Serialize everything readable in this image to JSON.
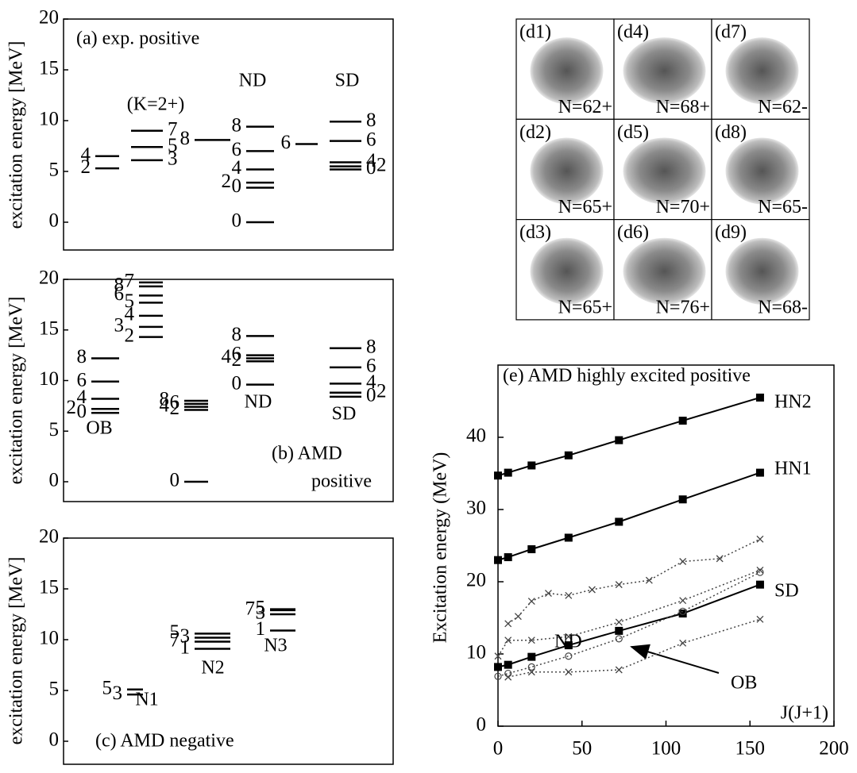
{
  "chart_data": [
    {
      "type": "level",
      "title_lines": [
        "(a) exp. positive"
      ],
      "ylabel": "excitation energy [MeV]",
      "ylim": [
        0,
        20
      ],
      "yticks": [
        0,
        5,
        10,
        15,
        20
      ],
      "bands": [
        {
          "levels": [
            5.3,
            6.5
          ],
          "spins": [
            "2",
            "4"
          ]
        },
        {
          "name": "(K=2+)",
          "levels": [
            6.1,
            7.4,
            9.0
          ],
          "spins": [
            "3",
            "5",
            "7"
          ]
        },
        {
          "levels": [
            8.1
          ],
          "spins": [
            "8"
          ]
        },
        {
          "name": "ND",
          "levels": [
            0,
            3.4,
            3.9,
            5.2,
            7.0,
            9.4
          ],
          "spins": [
            "0",
            "0",
            "2",
            "4",
            "6",
            "8"
          ]
        },
        {
          "levels": [
            7.7
          ],
          "spins": [
            "6"
          ]
        },
        {
          "name": "SD",
          "levels": [
            5.2,
            5.5,
            5.9,
            8.0,
            9.9
          ],
          "spins": [
            "0",
            "2",
            "4",
            "6",
            "8"
          ]
        }
      ]
    },
    {
      "type": "level",
      "title_lines": [
        "(b) AMD",
        "positive"
      ],
      "ylabel": "excitation energy [MeV]",
      "ylim": [
        0,
        20
      ],
      "yticks": [
        0,
        5,
        10,
        15,
        20
      ],
      "bands": [
        {
          "name": "OB",
          "levels": [
            6.8,
            7.2,
            8.2,
            9.9,
            12.2
          ],
          "spins": [
            "0",
            "2",
            "4",
            "6",
            "8"
          ]
        },
        {
          "levels": [
            14.3,
            15.3,
            16.4,
            17.7,
            18.4,
            19.7,
            19.3
          ],
          "spins": [
            "2",
            "3",
            "4",
            "5",
            "6",
            "7",
            "8"
          ]
        },
        {
          "name": "ND",
          "levels": [
            0,
            7.1,
            7.4,
            7.7,
            8.0
          ],
          "spins": [
            "0",
            "2",
            "4",
            "6",
            "8"
          ]
        },
        {
          "levels": [
            9.6,
            11.9,
            12.2,
            12.5,
            14.4
          ],
          "spins": [
            "0",
            "2",
            "4",
            "6",
            "8"
          ]
        },
        {
          "name": "SD",
          "levels": [
            8.4,
            8.8,
            9.7,
            11.3,
            13.2
          ],
          "spins": [
            "0",
            "2",
            "4",
            "6",
            "8"
          ]
        }
      ]
    },
    {
      "type": "level",
      "title_lines": [
        "(c) AMD negative"
      ],
      "ylabel": "excitation energy [MeV]",
      "ylim": [
        0,
        20
      ],
      "yticks": [
        0,
        5,
        10,
        15,
        20
      ],
      "bands": [
        {
          "name": "N1",
          "levels": [
            4.6,
            5.1
          ],
          "spins": [
            "3",
            "5"
          ]
        },
        {
          "name": "N2",
          "levels": [
            9.1,
            9.8,
            10.2,
            10.6
          ],
          "spins": [
            "1",
            "7",
            "3",
            "5"
          ]
        },
        {
          "name": "N3",
          "levels": [
            10.9,
            12.5,
            12.9,
            13.0
          ],
          "spins": [
            "1",
            "3",
            "7",
            "5"
          ]
        }
      ]
    },
    {
      "type": "line",
      "title": "(e) AMD highly excited positive",
      "xlabel": "J(J+1)",
      "ylabel": "Excitation energy  (MeV)",
      "xlim": [
        0,
        200
      ],
      "xticks": [
        0,
        50,
        100,
        150,
        200
      ],
      "ylim": [
        0,
        50
      ],
      "yticks": [
        0,
        10,
        20,
        30,
        40
      ],
      "series": [
        {
          "name": "HN2",
          "color": "#000000",
          "marker": "square",
          "linestyle": "solid",
          "x": [
            0,
            6,
            20,
            42,
            72,
            110,
            156
          ],
          "values": [
            34.7,
            35.1,
            36.1,
            37.5,
            39.6,
            42.3,
            45.5
          ]
        },
        {
          "name": "HN1",
          "color": "#000000",
          "marker": "square",
          "linestyle": "solid",
          "x": [
            0,
            6,
            20,
            42,
            72,
            110,
            156
          ],
          "values": [
            23.0,
            23.4,
            24.5,
            26.1,
            28.3,
            31.4,
            35.1
          ]
        },
        {
          "name": "SD",
          "color": "#000000",
          "marker": "square",
          "linestyle": "solid",
          "x": [
            0,
            6,
            20,
            42,
            72,
            110,
            156
          ],
          "values": [
            8.2,
            8.5,
            9.6,
            11.2,
            13.2,
            15.6,
            19.6
          ]
        },
        {
          "color": "#444444",
          "marker": "x",
          "linestyle": "dotted",
          "x": [
            6,
            12,
            20,
            30,
            42,
            56,
            72,
            90,
            110,
            132,
            156
          ],
          "values": [
            14.2,
            15.2,
            17.3,
            18.4,
            18.1,
            18.9,
            19.6,
            20.2,
            22.8,
            23.2,
            25.9
          ]
        },
        {
          "name": "ND",
          "color": "#444444",
          "marker": "x",
          "linestyle": "dotted",
          "x": [
            0,
            6,
            20,
            42,
            72,
            110,
            156
          ],
          "values": [
            9.7,
            11.9,
            11.9,
            12.4,
            14.4,
            17.4,
            21.6
          ]
        },
        {
          "name": "OB",
          "color": "#444444",
          "marker": "circle",
          "linestyle": "dotted",
          "x": [
            0,
            6,
            20,
            42,
            72,
            110,
            156
          ],
          "values": [
            6.9,
            7.3,
            8.2,
            9.7,
            12.1,
            15.9,
            21.3
          ]
        },
        {
          "color": "#444444",
          "marker": "x",
          "linestyle": "dotted",
          "x": [
            6,
            20,
            42,
            72,
            110,
            156
          ],
          "values": [
            6.8,
            7.5,
            7.5,
            7.8,
            11.5,
            14.8
          ]
        }
      ]
    }
  ],
  "density_maps": [
    {
      "label": "(d1)",
      "n": "N=62+"
    },
    {
      "label": "(d2)",
      "n": "N=65+"
    },
    {
      "label": "(d3)",
      "n": "N=65+"
    },
    {
      "label": "(d4)",
      "n": "N=68+"
    },
    {
      "label": "(d5)",
      "n": "N=70+"
    },
    {
      "label": "(d6)",
      "n": "N=76+"
    },
    {
      "label": "(d7)",
      "n": "N=62-"
    },
    {
      "label": "(d8)",
      "n": "N=65-"
    },
    {
      "label": "(d9)",
      "n": "N=68-"
    }
  ]
}
